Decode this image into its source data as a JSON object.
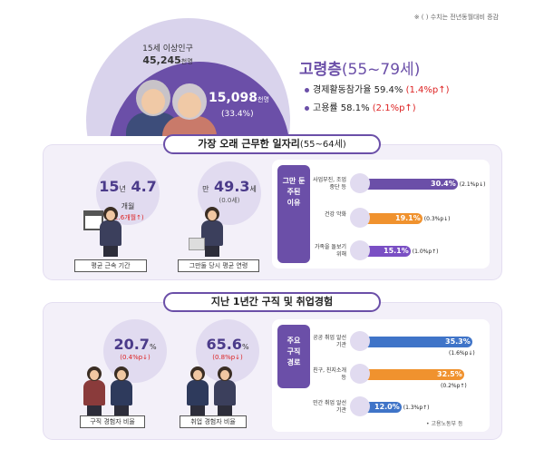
{
  "note": "※ ( ) 수치는 전년동월대비 증감",
  "hero": {
    "pop_label": "15세 이상인구",
    "pop_value": "45,245",
    "pop_unit": "천명",
    "old_value": "15,098",
    "old_unit": "천명",
    "old_pct": "(33.4%)",
    "title": "고령층",
    "title_range": "(55~79세)",
    "stats": [
      {
        "label": "경제활동참가율",
        "value": "59.4%",
        "change": "(1.4%p↑)"
      },
      {
        "label": "고용률",
        "value": "58.1%",
        "change": "(2.1%p↑)"
      }
    ]
  },
  "longest_job": {
    "title": "가장 오래 근무한 일자리",
    "title_range": "(55~64세)",
    "tenure": {
      "years": "15",
      "y_unit": "년",
      "months": "4.7",
      "m_unit": "개월",
      "change": "(2.6개월↑)",
      "caption": "평균 근속 기간"
    },
    "quit_age": {
      "prefix": "만",
      "value": "49.3",
      "unit": "세",
      "change": "(0.0세)",
      "caption": "그만둘 당시 평균 연령"
    },
    "reason_tag": [
      "그만 둔",
      "주된",
      "이유"
    ],
    "reasons": [
      {
        "label": "사업부진, 조업중단 등",
        "value": "30.4%",
        "change": "(2.1%p↓)",
        "pct": 30.4,
        "color": "#6b4fa8"
      },
      {
        "label": "건강 악화",
        "value": "19.1%",
        "change": "(0.3%p↓)",
        "pct": 19.1,
        "color": "#f0922e"
      },
      {
        "label": "가족을 돌보기 위해",
        "value": "15.1%",
        "change": "(1.0%p↑)",
        "pct": 15.1,
        "color": "#7a4fc4"
      }
    ]
  },
  "job_search": {
    "title": "지난 1년간 구직 및 취업경험",
    "search_rate": {
      "value": "20.7",
      "unit": "%",
      "change": "(0.4%p↓)",
      "caption": "구직 경험자 비율"
    },
    "employ_rate": {
      "value": "65.6",
      "unit": "%",
      "change": "(0.8%p↓)",
      "caption": "취업 경험자 비율"
    },
    "route_tag": [
      "주요",
      "구직",
      "경로"
    ],
    "routes": [
      {
        "label": "공공 취업 알선기관",
        "value": "35.3%",
        "change": "(1.6%p↓)",
        "pct": 35.3,
        "color": "#3f74c8"
      },
      {
        "label": "친구, 친지소개 등",
        "value": "32.5%",
        "change": "(0.2%p↑)",
        "pct": 32.5,
        "color": "#f0922e"
      },
      {
        "label": "민간 취업 알선기관",
        "value": "12.0%",
        "change": "(1.3%p↑)",
        "pct": 12.0,
        "color": "#3f74c8"
      }
    ],
    "source": "• 고용노동부 등"
  },
  "colors": {
    "accent": "#6b4fa8",
    "increase": "#d22222",
    "orange": "#f0922e",
    "blue": "#3f74c8"
  }
}
